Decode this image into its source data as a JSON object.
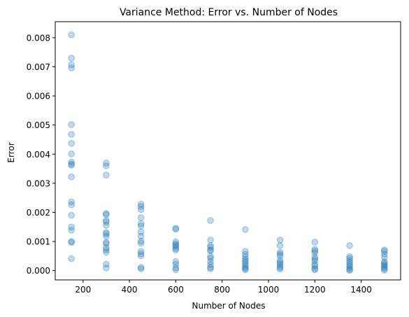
{
  "colors": {
    "point": "#1f77b4",
    "point_opacity": 0.28
  },
  "chart_data": {
    "type": "scatter",
    "title": "Variance Method: Error vs. Number of Nodes",
    "xlabel": "Number of Nodes",
    "ylabel": "Error",
    "xlim": [
      80,
      1570
    ],
    "ylim": [
      -0.00032,
      0.00855
    ],
    "xticks": [
      {
        "value": 200,
        "label": "200"
      },
      {
        "value": 400,
        "label": "400"
      },
      {
        "value": 600,
        "label": "600"
      },
      {
        "value": 800,
        "label": "800"
      },
      {
        "value": 1000,
        "label": "1000"
      },
      {
        "value": 1200,
        "label": "1200"
      },
      {
        "value": 1400,
        "label": "1400"
      }
    ],
    "yticks": [
      {
        "value": 0.0,
        "label": "0.000"
      },
      {
        "value": 0.001,
        "label": "0.001"
      },
      {
        "value": 0.002,
        "label": "0.002"
      },
      {
        "value": 0.003,
        "label": "0.003"
      },
      {
        "value": 0.004,
        "label": "0.004"
      },
      {
        "value": 0.005,
        "label": "0.005"
      },
      {
        "value": 0.006,
        "label": "0.006"
      },
      {
        "value": 0.007,
        "label": "0.007"
      },
      {
        "value": 0.008,
        "label": "0.008"
      }
    ],
    "grid": false,
    "series": [
      {
        "points": [
          {
            "x": 150,
            "y": 0.0081
          },
          {
            "x": 150,
            "y": 0.0073
          },
          {
            "x": 150,
            "y": 0.00707
          },
          {
            "x": 150,
            "y": 0.00696
          },
          {
            "x": 150,
            "y": 0.00502
          },
          {
            "x": 150,
            "y": 0.00468
          },
          {
            "x": 150,
            "y": 0.00437
          },
          {
            "x": 150,
            "y": 0.00401
          },
          {
            "x": 150,
            "y": 0.00373
          },
          {
            "x": 150,
            "y": 0.00366
          },
          {
            "x": 150,
            "y": 0.00362
          },
          {
            "x": 150,
            "y": 0.00322
          },
          {
            "x": 150,
            "y": 0.00236
          },
          {
            "x": 150,
            "y": 0.00226
          },
          {
            "x": 150,
            "y": 0.0019
          },
          {
            "x": 150,
            "y": 0.0015
          },
          {
            "x": 150,
            "y": 0.00139
          },
          {
            "x": 150,
            "y": 0.001
          },
          {
            "x": 150,
            "y": 0.00097
          },
          {
            "x": 150,
            "y": 0.00041
          },
          {
            "x": 300,
            "y": 0.0037
          },
          {
            "x": 300,
            "y": 0.0036
          },
          {
            "x": 300,
            "y": 0.00328
          },
          {
            "x": 300,
            "y": 0.00196
          },
          {
            "x": 300,
            "y": 0.00192
          },
          {
            "x": 300,
            "y": 0.00172
          },
          {
            "x": 300,
            "y": 0.00167
          },
          {
            "x": 300,
            "y": 0.00156
          },
          {
            "x": 300,
            "y": 0.00131
          },
          {
            "x": 300,
            "y": 0.00126
          },
          {
            "x": 300,
            "y": 0.00118
          },
          {
            "x": 300,
            "y": 0.00097
          },
          {
            "x": 300,
            "y": 0.00093
          },
          {
            "x": 300,
            "y": 0.00078
          },
          {
            "x": 300,
            "y": 0.00071
          },
          {
            "x": 300,
            "y": 0.00063
          },
          {
            "x": 300,
            "y": 0.00022
          },
          {
            "x": 300,
            "y": 9e-05
          },
          {
            "x": 450,
            "y": 0.00228
          },
          {
            "x": 450,
            "y": 0.0022
          },
          {
            "x": 450,
            "y": 0.0021
          },
          {
            "x": 450,
            "y": 0.00182
          },
          {
            "x": 450,
            "y": 0.00161
          },
          {
            "x": 450,
            "y": 0.00153
          },
          {
            "x": 450,
            "y": 0.00133
          },
          {
            "x": 450,
            "y": 0.00118
          },
          {
            "x": 450,
            "y": 0.00101
          },
          {
            "x": 450,
            "y": 0.00094
          },
          {
            "x": 450,
            "y": 0.00066
          },
          {
            "x": 450,
            "y": 0.00058
          },
          {
            "x": 450,
            "y": 0.00051
          },
          {
            "x": 450,
            "y": 0.00011
          },
          {
            "x": 450,
            "y": 6e-05
          },
          {
            "x": 600,
            "y": 0.00146
          },
          {
            "x": 600,
            "y": 0.00142
          },
          {
            "x": 600,
            "y": 0.00099
          },
          {
            "x": 600,
            "y": 0.00092
          },
          {
            "x": 600,
            "y": 0.00088
          },
          {
            "x": 600,
            "y": 0.00083
          },
          {
            "x": 600,
            "y": 0.00076
          },
          {
            "x": 600,
            "y": 0.00071
          },
          {
            "x": 600,
            "y": 0.00031
          },
          {
            "x": 600,
            "y": 0.00022
          },
          {
            "x": 600,
            "y": 9e-05
          },
          {
            "x": 600,
            "y": 3e-05
          },
          {
            "x": 750,
            "y": 0.00172
          },
          {
            "x": 750,
            "y": 0.00105
          },
          {
            "x": 750,
            "y": 0.00086
          },
          {
            "x": 750,
            "y": 0.0008
          },
          {
            "x": 750,
            "y": 0.00071
          },
          {
            "x": 750,
            "y": 0.00068
          },
          {
            "x": 750,
            "y": 0.00049
          },
          {
            "x": 750,
            "y": 0.00043
          },
          {
            "x": 750,
            "y": 0.00031
          },
          {
            "x": 750,
            "y": 0.00021
          },
          {
            "x": 750,
            "y": 0.00011
          },
          {
            "x": 750,
            "y": 6e-05
          },
          {
            "x": 900,
            "y": 0.00141
          },
          {
            "x": 900,
            "y": 0.00066
          },
          {
            "x": 900,
            "y": 0.00056
          },
          {
            "x": 900,
            "y": 0.00047
          },
          {
            "x": 900,
            "y": 0.00039
          },
          {
            "x": 900,
            "y": 0.00033
          },
          {
            "x": 900,
            "y": 0.00026
          },
          {
            "x": 900,
            "y": 0.00019
          },
          {
            "x": 900,
            "y": 0.00012
          },
          {
            "x": 900,
            "y": 7e-05
          },
          {
            "x": 900,
            "y": 3e-05
          },
          {
            "x": 1050,
            "y": 0.00105
          },
          {
            "x": 1050,
            "y": 0.00086
          },
          {
            "x": 1050,
            "y": 0.00063
          },
          {
            "x": 1050,
            "y": 0.00057
          },
          {
            "x": 1050,
            "y": 0.00051
          },
          {
            "x": 1050,
            "y": 0.00035
          },
          {
            "x": 1050,
            "y": 0.00029
          },
          {
            "x": 1050,
            "y": 0.00023
          },
          {
            "x": 1050,
            "y": 0.00016
          },
          {
            "x": 1050,
            "y": 0.0001
          },
          {
            "x": 1050,
            "y": 5e-05
          },
          {
            "x": 1200,
            "y": 0.00098
          },
          {
            "x": 1200,
            "y": 0.00073
          },
          {
            "x": 1200,
            "y": 0.00068
          },
          {
            "x": 1200,
            "y": 0.00061
          },
          {
            "x": 1200,
            "y": 0.00046
          },
          {
            "x": 1200,
            "y": 0.00039
          },
          {
            "x": 1200,
            "y": 0.00033
          },
          {
            "x": 1200,
            "y": 0.00021
          },
          {
            "x": 1200,
            "y": 0.00015
          },
          {
            "x": 1200,
            "y": 7e-05
          },
          {
            "x": 1200,
            "y": 3e-05
          },
          {
            "x": 1350,
            "y": 0.00086
          },
          {
            "x": 1350,
            "y": 0.00048
          },
          {
            "x": 1350,
            "y": 0.00042
          },
          {
            "x": 1350,
            "y": 0.00034
          },
          {
            "x": 1350,
            "y": 0.00028
          },
          {
            "x": 1350,
            "y": 0.00021
          },
          {
            "x": 1350,
            "y": 0.00015
          },
          {
            "x": 1350,
            "y": 9e-05
          },
          {
            "x": 1350,
            "y": 4e-05
          },
          {
            "x": 1350,
            "y": 1e-05
          },
          {
            "x": 1500,
            "y": 0.00071
          },
          {
            "x": 1500,
            "y": 0.00066
          },
          {
            "x": 1500,
            "y": 0.00057
          },
          {
            "x": 1500,
            "y": 0.00046
          },
          {
            "x": 1500,
            "y": 0.00031
          },
          {
            "x": 1500,
            "y": 0.00026
          },
          {
            "x": 1500,
            "y": 0.00021
          },
          {
            "x": 1500,
            "y": 0.00016
          },
          {
            "x": 1500,
            "y": 0.00011
          },
          {
            "x": 1500,
            "y": 6e-05
          },
          {
            "x": 1500,
            "y": 2e-05
          }
        ]
      }
    ]
  }
}
